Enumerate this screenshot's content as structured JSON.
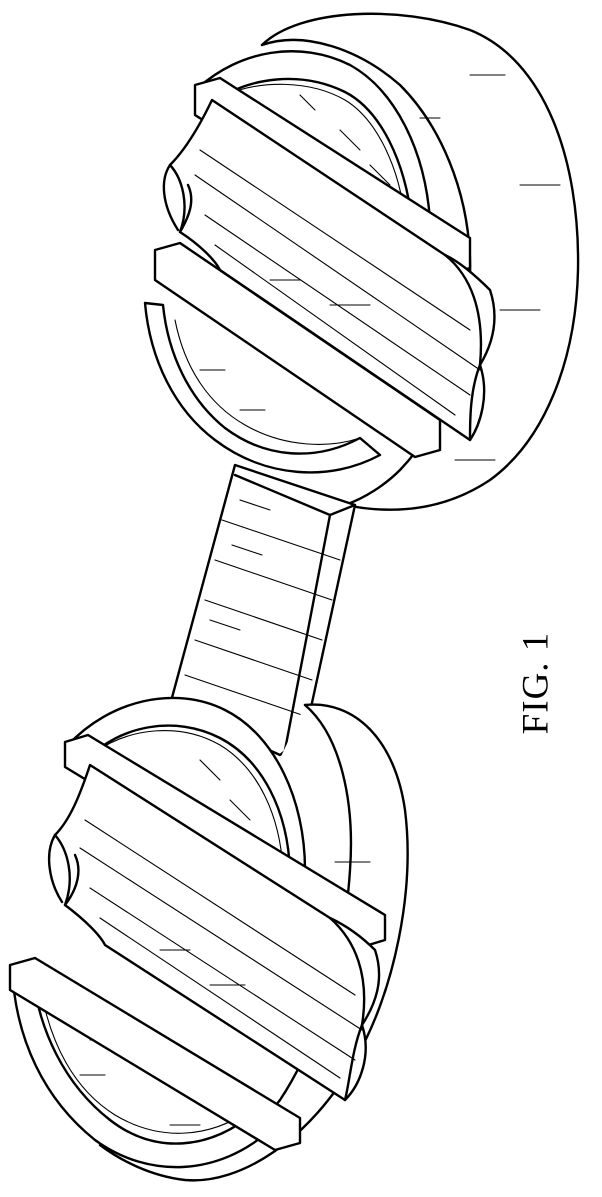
{
  "figure": {
    "label": "FIG. 1"
  }
}
